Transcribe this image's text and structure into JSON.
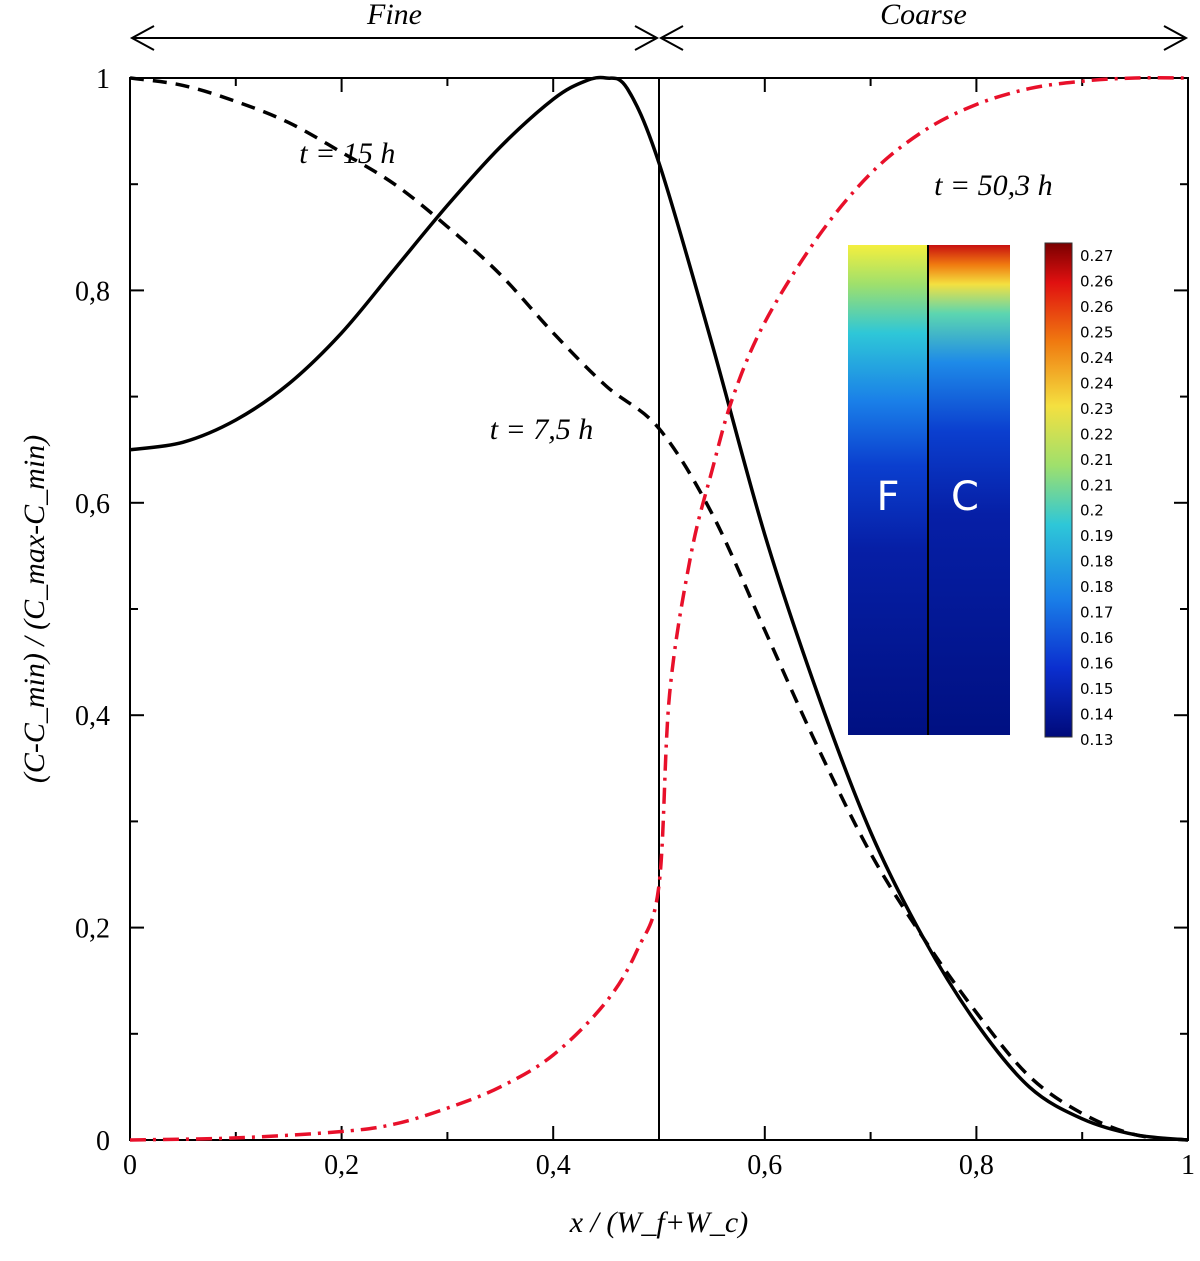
{
  "chart_data": {
    "type": "line",
    "xlabel": "x / (W_f+W_c)",
    "ylabel": "(C-C_min) / (C_max-C_min)",
    "xlim": [
      0,
      1
    ],
    "ylim": [
      0,
      1
    ],
    "x_ticks": [
      "0",
      "0,2",
      "0,4",
      "0,6",
      "0,8",
      "1"
    ],
    "y_ticks": [
      "0",
      "0,2",
      "0,4",
      "0,6",
      "0,8",
      "1"
    ],
    "interface_x": 0.5,
    "regions": [
      {
        "label": "Fine",
        "from": 0,
        "to": 0.5
      },
      {
        "label": "Coarse",
        "from": 0.5,
        "to": 1
      }
    ],
    "series": [
      {
        "name": "t = 7,5 h",
        "style": "solid",
        "color": "#000000",
        "label_pos": [
          0.34,
          0.66
        ],
        "x": [
          0,
          0.05,
          0.1,
          0.15,
          0.2,
          0.25,
          0.3,
          0.35,
          0.4,
          0.43,
          0.45,
          0.47,
          0.5,
          0.55,
          0.6,
          0.65,
          0.7,
          0.75,
          0.8,
          0.85,
          0.9,
          0.95,
          1.0
        ],
        "values": [
          0.65,
          0.657,
          0.678,
          0.712,
          0.76,
          0.82,
          0.88,
          0.935,
          0.98,
          0.997,
          1.0,
          0.99,
          0.92,
          0.75,
          0.57,
          0.42,
          0.29,
          0.19,
          0.11,
          0.05,
          0.02,
          0.005,
          0.0
        ]
      },
      {
        "name": "t = 15 h",
        "style": "dashed",
        "color": "#000000",
        "label_pos": [
          0.16,
          0.92
        ],
        "x": [
          0,
          0.05,
          0.1,
          0.15,
          0.2,
          0.25,
          0.3,
          0.35,
          0.4,
          0.45,
          0.5,
          0.55,
          0.6,
          0.65,
          0.7,
          0.75,
          0.8,
          0.85,
          0.9,
          0.95,
          1.0
        ],
        "values": [
          1.0,
          0.993,
          0.978,
          0.958,
          0.93,
          0.9,
          0.86,
          0.815,
          0.76,
          0.71,
          0.67,
          0.59,
          0.48,
          0.37,
          0.27,
          0.19,
          0.12,
          0.06,
          0.025,
          0.005,
          0.0
        ]
      },
      {
        "name": "t = 50,3 h",
        "style": "dashdot",
        "color": "#e8102a",
        "label_pos": [
          0.76,
          0.89
        ],
        "x": [
          0,
          0.1,
          0.2,
          0.25,
          0.3,
          0.35,
          0.4,
          0.45,
          0.48,
          0.5,
          0.51,
          0.53,
          0.55,
          0.57,
          0.6,
          0.65,
          0.7,
          0.75,
          0.8,
          0.85,
          0.9,
          0.95,
          1.0
        ],
        "values": [
          0.0,
          0.002,
          0.008,
          0.015,
          0.03,
          0.05,
          0.08,
          0.13,
          0.18,
          0.24,
          0.42,
          0.55,
          0.63,
          0.7,
          0.77,
          0.85,
          0.91,
          0.95,
          0.975,
          0.99,
          0.997,
          1.0,
          1.0
        ]
      }
    ],
    "inset": {
      "labels": [
        "F",
        "C"
      ],
      "colorbar_ticks": [
        "0.27",
        "0.26",
        "0.26",
        "0.25",
        "0.24",
        "0.24",
        "0.23",
        "0.22",
        "0.21",
        "0.21",
        "0.2",
        "0.19",
        "0.18",
        "0.18",
        "0.17",
        "0.16",
        "0.16",
        "0.15",
        "0.14",
        "0.13"
      ]
    }
  }
}
